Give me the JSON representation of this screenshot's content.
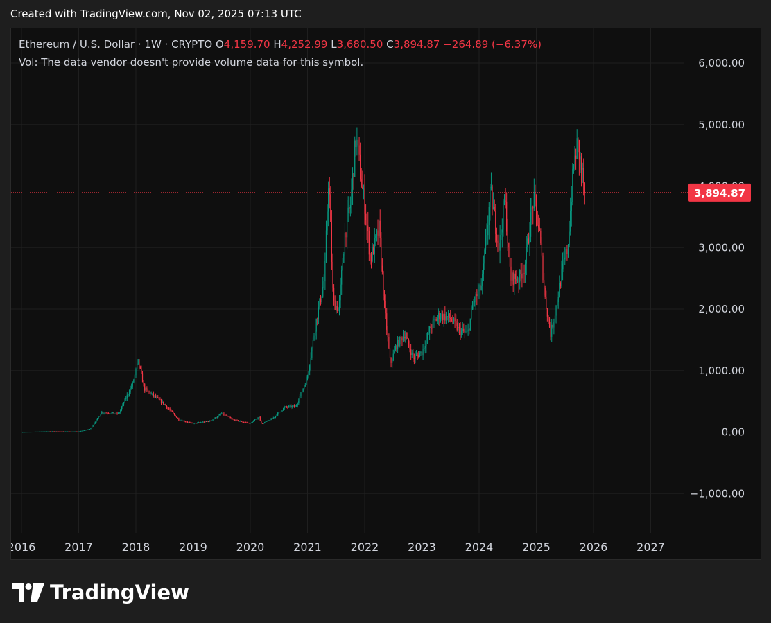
{
  "caption": "Created with TradingView.com, Nov 02, 2025 07:13 UTC",
  "legend": {
    "symbol": "Ethereum / U.S. Dollar · 1W · CRYPTO",
    "open_label": "O",
    "open": "4,159.70",
    "high_label": "H",
    "high": "4,252.99",
    "low_label": "L",
    "low": "3,680.50",
    "close_label": "C",
    "close": "3,894.87",
    "change": "−264.89 (−6.37%)"
  },
  "volume_note": "Vol: The data vendor doesn't provide volume data for this symbol.",
  "brand": "TradingView",
  "colors": {
    "up": "#089981",
    "down": "#f23645",
    "background": "#0f0f0f",
    "grid": "#1f1f1f",
    "price_tag": "#f23645"
  },
  "chart_data": {
    "type": "candlestick",
    "interval": "1W",
    "y_ticks": [
      6000,
      5000,
      3000,
      2000,
      1000,
      0,
      -1000
    ],
    "y_tick_labels": [
      "6,000.00",
      "5,000.00",
      "3,000.00",
      "2,000.00",
      "1,000.00",
      "0.00",
      "−1,000.00"
    ],
    "x_ticks": [
      2016,
      2017,
      2018,
      2019,
      2020,
      2021,
      2022,
      2023,
      2024,
      2025,
      2026,
      2027
    ],
    "x_tick_labels": [
      "2016",
      "2017",
      "2018",
      "2019",
      "2020",
      "2021",
      "2022",
      "2023",
      "2024",
      "2025",
      "2026",
      "2027"
    ],
    "ylim": [
      -1600,
      6400
    ],
    "xlim": [
      2015.85,
      2027.85
    ],
    "last_price": 3894.87,
    "last_price_label": "3,894.87",
    "grid": true,
    "price_path": [
      [
        2016.0,
        1
      ],
      [
        2016.5,
        12
      ],
      [
        2017.0,
        10
      ],
      [
        2017.2,
        50
      ],
      [
        2017.4,
        320
      ],
      [
        2017.7,
        300
      ],
      [
        2017.95,
        800
      ],
      [
        2018.04,
        1150
      ],
      [
        2018.15,
        700
      ],
      [
        2018.3,
        600
      ],
      [
        2018.5,
        450
      ],
      [
        2018.75,
        200
      ],
      [
        2019.0,
        140
      ],
      [
        2019.3,
        180
      ],
      [
        2019.5,
        300
      ],
      [
        2019.7,
        200
      ],
      [
        2020.0,
        140
      ],
      [
        2020.15,
        250
      ],
      [
        2020.2,
        130
      ],
      [
        2020.4,
        230
      ],
      [
        2020.6,
        400
      ],
      [
        2020.8,
        420
      ],
      [
        2021.0,
        900
      ],
      [
        2021.15,
        1800
      ],
      [
        2021.3,
        2500
      ],
      [
        2021.37,
        4200
      ],
      [
        2021.45,
        2100
      ],
      [
        2021.55,
        2000
      ],
      [
        2021.65,
        3200
      ],
      [
        2021.75,
        3700
      ],
      [
        2021.85,
        4800
      ],
      [
        2021.95,
        4000
      ],
      [
        2022.0,
        3700
      ],
      [
        2022.1,
        2800
      ],
      [
        2022.25,
        3300
      ],
      [
        2022.35,
        2000
      ],
      [
        2022.45,
        1100
      ],
      [
        2022.55,
        1400
      ],
      [
        2022.7,
        1600
      ],
      [
        2022.85,
        1200
      ],
      [
        2023.0,
        1300
      ],
      [
        2023.15,
        1700
      ],
      [
        2023.3,
        1900
      ],
      [
        2023.5,
        1850
      ],
      [
        2023.65,
        1650
      ],
      [
        2023.8,
        1600
      ],
      [
        2023.9,
        2100
      ],
      [
        2024.05,
        2400
      ],
      [
        2024.2,
        3900
      ],
      [
        2024.35,
        3000
      ],
      [
        2024.45,
        3800
      ],
      [
        2024.55,
        2500
      ],
      [
        2024.7,
        2500
      ],
      [
        2024.8,
        2700
      ],
      [
        2024.95,
        3800
      ],
      [
        2025.05,
        3300
      ],
      [
        2025.15,
        2200
      ],
      [
        2025.25,
        1600
      ],
      [
        2025.3,
        1800
      ],
      [
        2025.45,
        2600
      ],
      [
        2025.55,
        3000
      ],
      [
        2025.65,
        4300
      ],
      [
        2025.72,
        4700
      ],
      [
        2025.82,
        4100
      ],
      [
        2025.85,
        3894.87
      ]
    ]
  }
}
